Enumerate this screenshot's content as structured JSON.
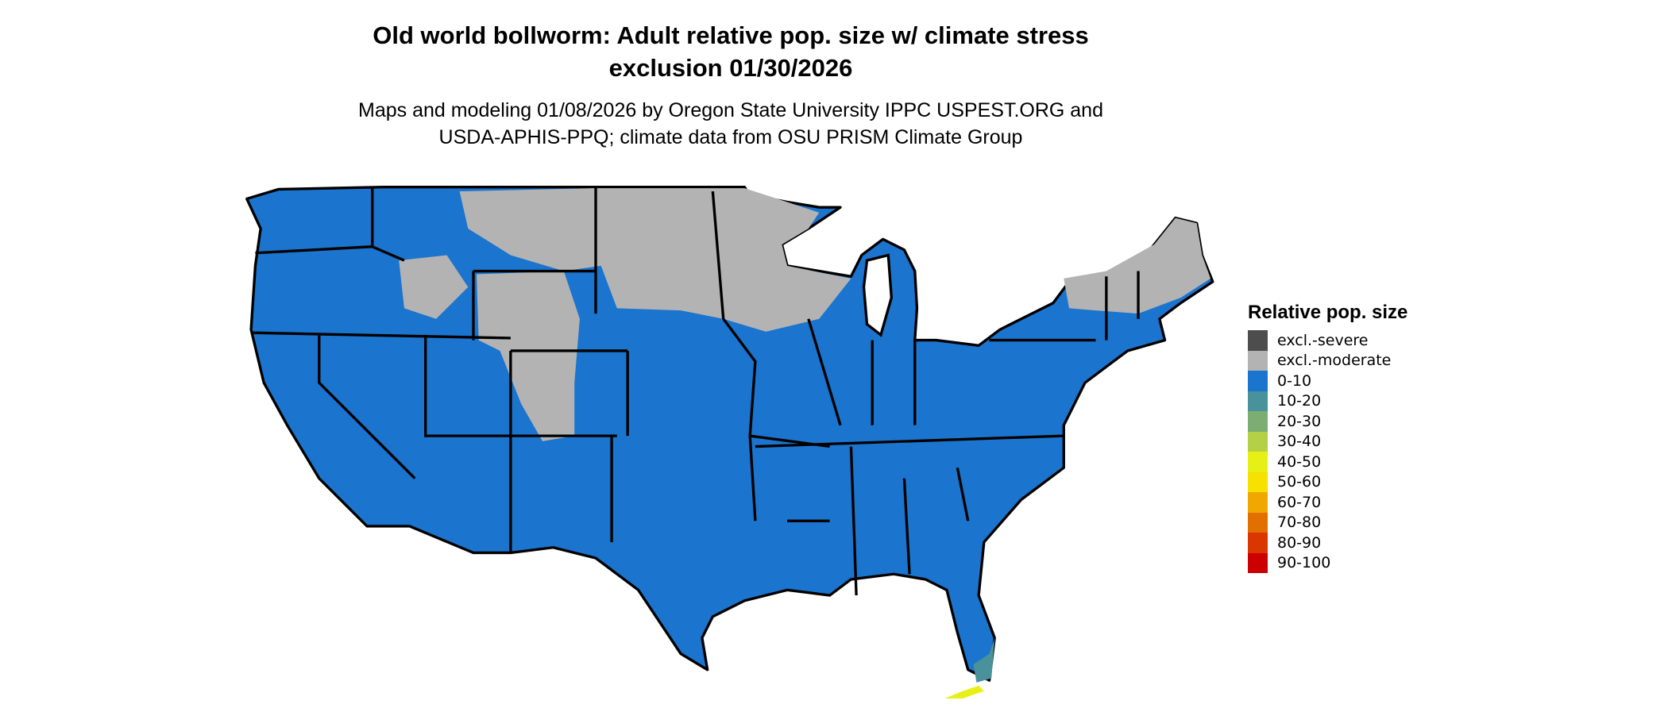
{
  "title": [
    "Old world bollworm: Adult relative pop. size w/ climate stress",
    "exclusion 01/30/2026"
  ],
  "subtitle": [
    "Maps and modeling 01/08/2026 by Oregon State University IPPC USPEST.ORG and",
    "USDA-APHIS-PPQ; climate data from OSU PRISM Climate Group"
  ],
  "legend": {
    "title": "Relative pop. size",
    "items": [
      {
        "label": "excl.-severe",
        "color": "#4d4d4d"
      },
      {
        "label": "excl.-moderate",
        "color": "#b3b3b3"
      },
      {
        "label": "0-10",
        "color": "#1b74cd"
      },
      {
        "label": "10-20",
        "color": "#49919b"
      },
      {
        "label": "20-30",
        "color": "#7cae73"
      },
      {
        "label": "30-40",
        "color": "#b3d046"
      },
      {
        "label": "40-50",
        "color": "#e6f015"
      },
      {
        "label": "50-60",
        "color": "#f7e100"
      },
      {
        "label": "60-70",
        "color": "#f0a800"
      },
      {
        "label": "70-80",
        "color": "#e27000"
      },
      {
        "label": "80-90",
        "color": "#da3600"
      },
      {
        "label": "90-100",
        "color": "#cc0000"
      }
    ]
  },
  "map": {
    "region": "Contiguous United States",
    "dominant_class": "0-10",
    "excluded_moderate_areas": [
      "Northern Plains / Upper Midwest",
      "Rocky Mountains",
      "Northern New England"
    ],
    "higher_classes": [
      "10-20 in South Florida",
      "40-50 in Florida Keys"
    ]
  }
}
